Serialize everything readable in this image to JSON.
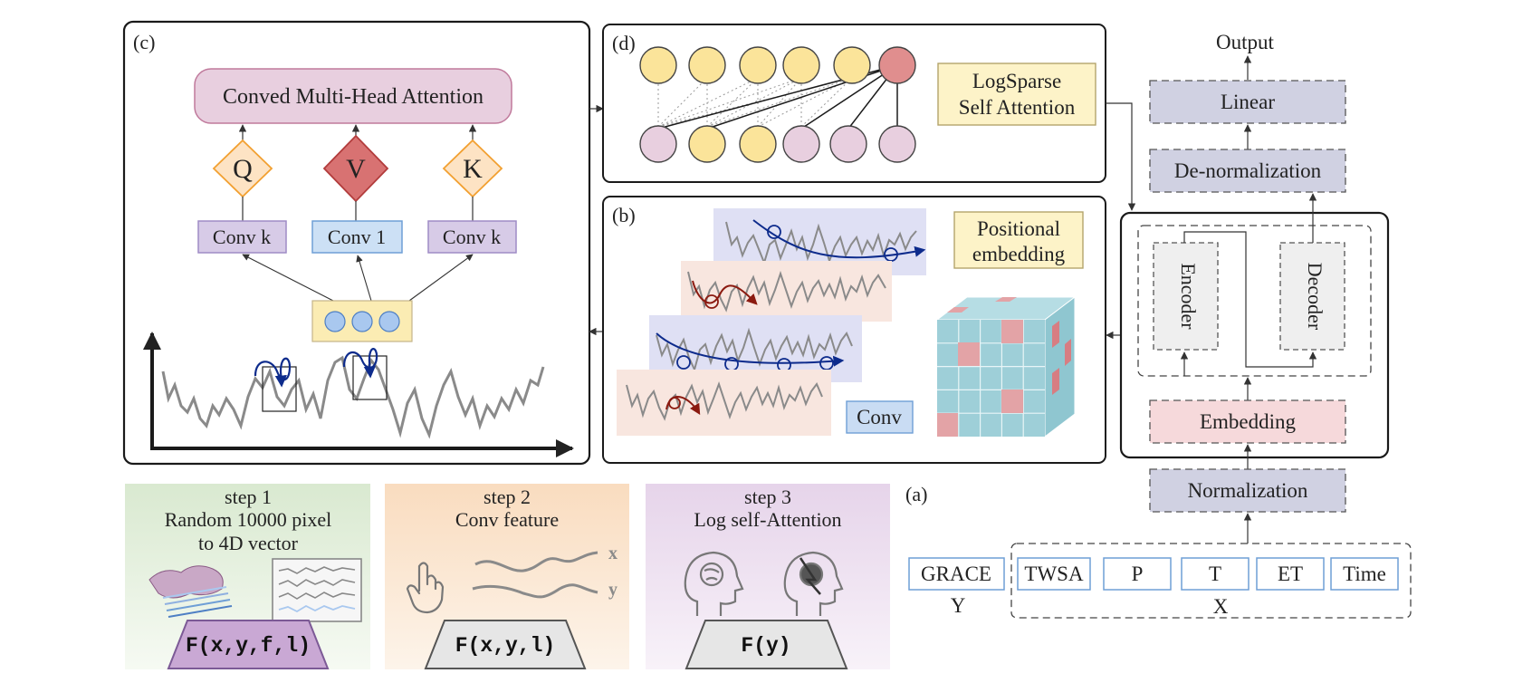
{
  "panels": {
    "a": "(a)",
    "b": "(b)",
    "c": "(c)",
    "d": "(d)"
  },
  "panel_c": {
    "attention_label": "Conved Multi-Head Attention",
    "q": "Q",
    "v": "V",
    "k": "K",
    "conv_k_left": "Conv k",
    "conv_1": "Conv 1",
    "conv_k_right": "Conv k"
  },
  "panel_d": {
    "logsparse_line1": "LogSparse",
    "logsparse_line2": "Self Attention"
  },
  "panel_b": {
    "pos_line1": "Positional",
    "pos_line2": "embedding",
    "conv": "Conv"
  },
  "model": {
    "output": "Output",
    "linear": "Linear",
    "denorm": "De-normalization",
    "encoder": "Encoder",
    "decoder": "Decoder",
    "embedding": "Embedding",
    "normalization": "Normalization",
    "inputs_y": [
      "GRACE"
    ],
    "inputs_x": [
      "TWSA",
      "P",
      "T",
      "ET",
      "Time"
    ],
    "label_y": "Y",
    "label_x": "X"
  },
  "steps": [
    {
      "title": "step 1",
      "line1": "Random 10000 pixel",
      "line2": "to 4D vector",
      "formula": "F(x,y,f,l)",
      "bg": "#e3efdc"
    },
    {
      "title": "step 2",
      "line1": "Conv feature",
      "line2": "",
      "formula": "F(x,y,l)",
      "bg": "#fbe6cf"
    },
    {
      "title": "step 3",
      "line1": "Log self-Attention",
      "line2": "",
      "formula": "F(y)",
      "bg": "#eedff0"
    }
  ],
  "step2_axis": {
    "x": "x",
    "y": "y"
  },
  "colors": {
    "lavender": "#cfcde4",
    "pink": "#f6d9db",
    "yellow": "#fbe49a",
    "rose": "#e08e8e",
    "mauve": "#e8cfdf",
    "blue": "#c9dcf3",
    "cube": "#9ecfd8",
    "cube_red": "#e3a3a6"
  }
}
